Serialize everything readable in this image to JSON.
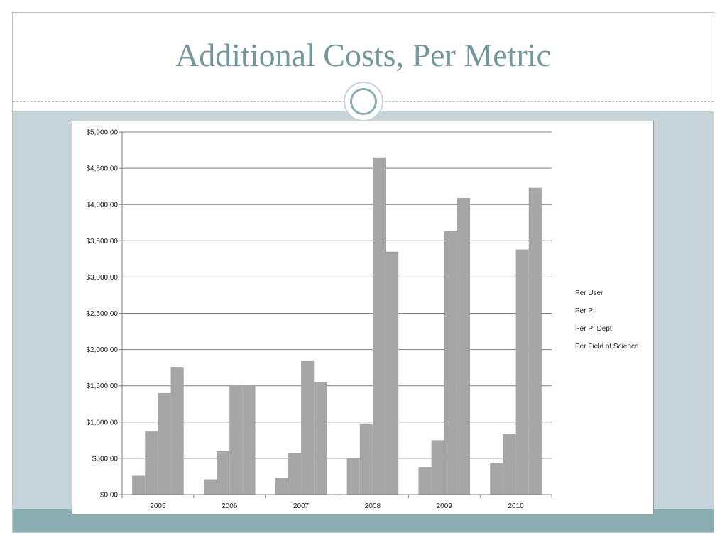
{
  "slide": {
    "title": "Additional Costs, Per Metric"
  },
  "chart_data": {
    "type": "bar",
    "title": "",
    "xlabel": "",
    "ylabel": "",
    "categories": [
      "2005",
      "2006",
      "2007",
      "2008",
      "2009",
      "2010"
    ],
    "series": [
      {
        "name": "Per User",
        "values": [
          260,
          210,
          230,
          500,
          380,
          440
        ]
      },
      {
        "name": "Per PI",
        "values": [
          870,
          600,
          570,
          980,
          750,
          840
        ]
      },
      {
        "name": "Per PI Dept",
        "values": [
          1400,
          1510,
          1840,
          4650,
          3630,
          3380
        ]
      },
      {
        "name": "Per Field of Science",
        "values": [
          1760,
          1510,
          1550,
          3350,
          4090,
          4230
        ]
      }
    ],
    "ylim": [
      0,
      5000
    ],
    "yticks": [
      0,
      500,
      1000,
      1500,
      2000,
      2500,
      3000,
      3500,
      4000,
      4500,
      5000
    ],
    "ytick_labels": [
      "$0.00",
      "$500.00",
      "$1,000.00",
      "$1,500.00",
      "$2,000.00",
      "$2,500.00",
      "$3,000.00",
      "$3,500.00",
      "$4,000.00",
      "$4,500.00",
      "$5,000.00"
    ],
    "grid": true,
    "legend_position": "right",
    "bar_color": "#a6a6a6",
    "grid_color": "#7f7f7f"
  }
}
